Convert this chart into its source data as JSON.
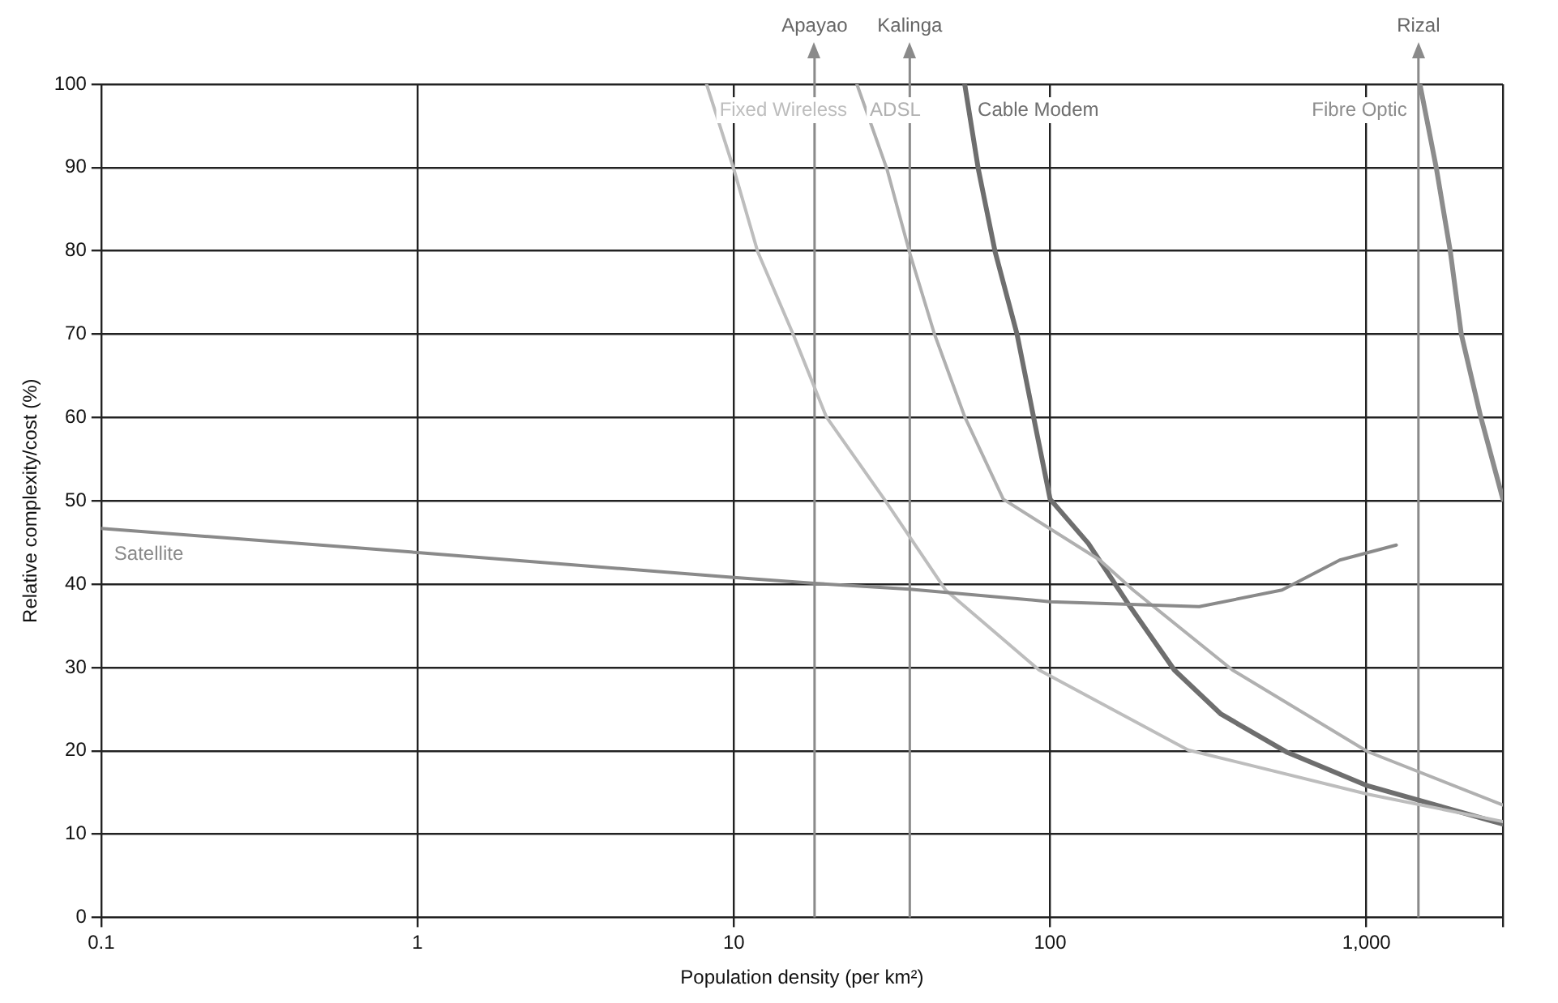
{
  "chart_data": {
    "type": "line",
    "xlabel": "Population density (per km²)",
    "ylabel": "Relative complexity/cost (%)",
    "log": "x",
    "xlim": [
      0.1,
      2700
    ],
    "ylim": [
      0,
      100
    ],
    "xticks": [
      0.1,
      1,
      10,
      100,
      {
        "value": 1000,
        "label": "1,000"
      },
      {
        "value": 2700,
        "label": null
      }
    ],
    "yticks": [
      0,
      10,
      20,
      30,
      40,
      50,
      60,
      70,
      80,
      90,
      100
    ],
    "grid": true,
    "legend": false,
    "marker": "none",
    "line_style": "solid",
    "series": [
      {
        "name": "Satellite",
        "color": "#8a8a8a",
        "x": [
          0.1,
          1,
          10,
          18,
          36,
          100,
          296,
          541,
          824,
          1243
        ],
        "values": [
          46.7,
          43.8,
          40.8,
          40.1,
          39.4,
          37.9,
          37.3,
          39.3,
          42.9,
          44.7
        ]
      },
      {
        "name": "Fixed Wireless",
        "color": "#bdbdbd",
        "x": [
          8.2,
          10,
          11.9,
          15.4,
          19.6,
          29.9,
          46.7,
          92.3,
          273,
          1009,
          2700
        ],
        "values": [
          100,
          89.8,
          79.9,
          70,
          60.1,
          50.2,
          39.3,
          29.7,
          20.1,
          14.8,
          11.5
        ]
      },
      {
        "name": "ADSL",
        "color": "#b0b0b0",
        "x": [
          24.5,
          30.5,
          35.9,
          43.1,
          53.7,
          71.1,
          143.5,
          183,
          377,
          1009,
          2700
        ],
        "values": [
          100,
          89.8,
          79.9,
          70,
          60.1,
          50.2,
          42.9,
          39.3,
          29.7,
          19.9,
          13.5
        ]
      },
      {
        "name": "Cable Modem",
        "color": "#6e6e6e",
        "x": [
          53.7,
          59.3,
          67,
          78.6,
          88.6,
          100,
          132,
          179,
          247,
          347,
          563,
          1009,
          2700
        ],
        "values": [
          100,
          89.8,
          79.9,
          70,
          60.1,
          50.2,
          44.9,
          37.3,
          29.7,
          24.4,
          19.8,
          15.8,
          11.2
        ]
      },
      {
        "name": "Fibre Optic",
        "color": "#8c8c8c",
        "x": [
          1476,
          1666,
          1842,
          1995,
          2297,
          2700
        ],
        "values": [
          100,
          89.8,
          79.9,
          70,
          60.1,
          50.2
        ]
      }
    ],
    "ref_lines": [
      {
        "axis": "x",
        "value": 18,
        "label": "Apayao",
        "color": "#8a8a8a"
      },
      {
        "axis": "x",
        "value": 36,
        "label": "Kalinga",
        "color": "#8a8a8a"
      },
      {
        "axis": "x",
        "value": 1460,
        "label": "Rizal",
        "color": "#8a8a8a"
      }
    ]
  }
}
